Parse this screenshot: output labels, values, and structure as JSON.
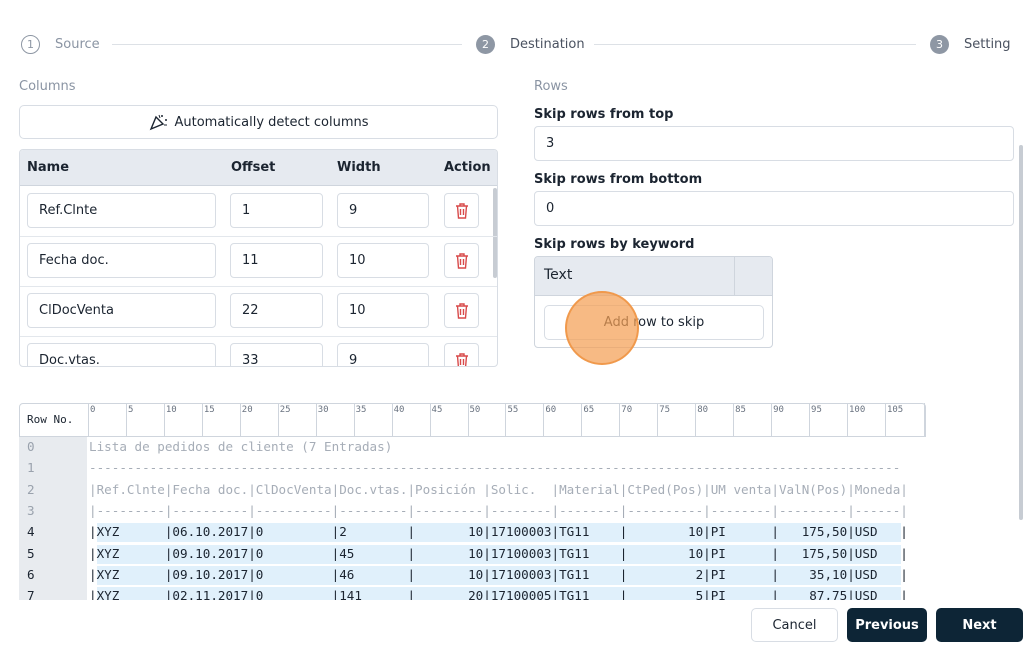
{
  "stepper": {
    "steps": [
      {
        "number": "1",
        "label": "Source"
      },
      {
        "number": "2",
        "label": "Destination"
      },
      {
        "number": "3",
        "label": "Setting"
      }
    ]
  },
  "columns": {
    "label": "Columns",
    "detect_button": "Automatically detect columns",
    "headers": [
      "Name",
      "Offset",
      "Width",
      "Action"
    ],
    "rows": [
      [
        "Ref.Clnte",
        "1",
        "9"
      ],
      [
        "Fecha doc.",
        "11",
        "10"
      ],
      [
        "ClDocVenta",
        "22",
        "10"
      ],
      [
        "Doc.vtas.",
        "33",
        "9"
      ]
    ]
  },
  "rows_section": {
    "label": "Rows",
    "fields": [
      {
        "label": "Skip rows from top",
        "value": "3"
      },
      {
        "label": "Skip rows from bottom",
        "value": "0"
      }
    ],
    "keyword_label": "Skip rows by keyword",
    "keyword_header": "Text",
    "add_button": "Add row to skip"
  },
  "preview": {
    "row_header": "Row No.",
    "ruler": [
      0,
      5,
      10,
      15,
      20,
      25,
      30,
      35,
      40,
      45,
      50,
      55,
      60,
      65,
      70,
      75,
      80,
      85,
      90,
      95,
      100,
      105
    ],
    "lines": [
      {
        "num": "0",
        "text": "Lista de pedidos de cliente (7 Entradas)"
      },
      {
        "num": "1",
        "text": "-----------------------------------------------------------------------------------------------------------"
      },
      {
        "num": "2",
        "text": "|Ref.Clnte|Fecha doc.|ClDocVenta|Doc.vtas.|Posición |Solic.  |Material|CtPed(Pos)|UM venta|ValN(Pos)|Moneda|"
      },
      {
        "num": "3",
        "text": "|---------|----------|----------|---------|---------|--------|--------|----------|--------|---------|------|"
      },
      {
        "num": "4",
        "text": "|XYZ      |06.10.2017|0         |2        |       10|17100003|TG11    |        10|PI      |   175,50|USD   |"
      },
      {
        "num": "5",
        "text": "|XYZ      |09.10.2017|0         |45       |       10|17100003|TG11    |        10|PI      |   175,50|USD   |"
      },
      {
        "num": "6",
        "text": "|XYZ      |09.10.2017|0         |46       |       10|17100003|TG11    |         2|PI      |    35,10|USD   |"
      },
      {
        "num": "7",
        "text": "|XYZ      |02.11.2017|0         |141      |       20|17100005|TG11    |         5|PI      |    87,75|USD   |"
      }
    ]
  },
  "footer": {
    "cancel": "Cancel",
    "previous": "Previous",
    "next": "Next"
  }
}
